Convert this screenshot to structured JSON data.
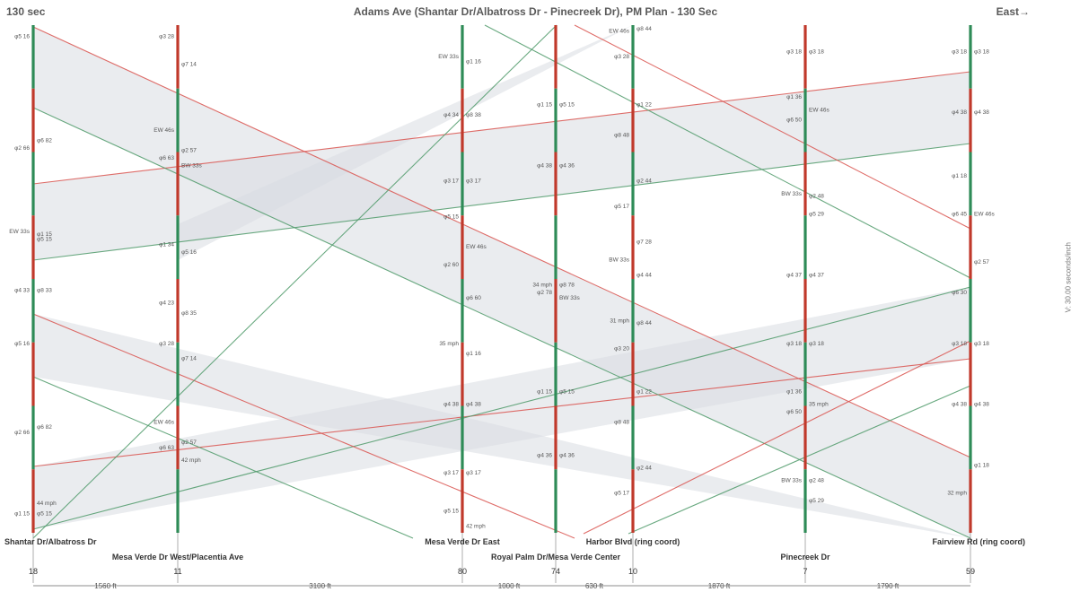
{
  "header": {
    "cycle_label": "130 sec",
    "title": "Adams Ave (Shantar Dr/Albatross Dr - Pinecreek Dr), PM Plan - 130 Sec",
    "direction": "East→"
  },
  "vertical_scale": "V: 30.00 seconds/inch",
  "intersections": [
    {
      "name": "Shantar Dr/Albatross Dr",
      "offset": "18",
      "row": 1,
      "phases": [
        {
          "t": 0.02,
          "text": "φ5 16"
        },
        {
          "t": 0.225,
          "text": "φ6 82"
        },
        {
          "t": 0.24,
          "text": "φ2 66"
        },
        {
          "t": 0.41,
          "text": "φ1 15"
        },
        {
          "t": 0.405,
          "text": "EW 33s"
        },
        {
          "t": 0.42,
          "text": "φ5 15"
        },
        {
          "t": 0.52,
          "text": "φ4 33"
        },
        {
          "t": 0.52,
          "text": "φ8 33"
        },
        {
          "t": 0.625,
          "text": "φ5 16"
        },
        {
          "t": 0.79,
          "text": "φ6 82"
        },
        {
          "t": 0.8,
          "text": "φ2 66"
        },
        {
          "t": 0.94,
          "text": "44 mph"
        },
        {
          "t": 0.96,
          "text": "φ1 15"
        },
        {
          "t": 0.96,
          "text": "φ5 15"
        }
      ]
    },
    {
      "name": "Mesa Verde Dr West/Placentia Ave",
      "offset": "11",
      "row": 2,
      "phases": [
        {
          "t": 0.02,
          "text": "φ3 28"
        },
        {
          "t": 0.075,
          "text": "φ7 14"
        },
        {
          "t": 0.205,
          "text": "EW 46s"
        },
        {
          "t": 0.245,
          "text": "φ2 57"
        },
        {
          "t": 0.26,
          "text": "φ6 63"
        },
        {
          "t": 0.275,
          "text": "BW 33s"
        },
        {
          "t": 0.43,
          "text": "φ1 34"
        },
        {
          "t": 0.445,
          "text": "φ5 16"
        },
        {
          "t": 0.545,
          "text": "φ4 23"
        },
        {
          "t": 0.565,
          "text": "φ8 35"
        },
        {
          "t": 0.625,
          "text": "φ3 28"
        },
        {
          "t": 0.655,
          "text": "φ7 14"
        },
        {
          "t": 0.78,
          "text": "EW 46s"
        },
        {
          "t": 0.82,
          "text": "φ2 57"
        },
        {
          "t": 0.83,
          "text": "φ6 63"
        },
        {
          "t": 0.855,
          "text": "42 mph"
        }
      ]
    },
    {
      "name": "Mesa Verde Dr East",
      "offset": "80",
      "row": 1,
      "phases": [
        {
          "t": 0.06,
          "text": "EW 33s"
        },
        {
          "t": 0.07,
          "text": "φ1 16"
        },
        {
          "t": 0.175,
          "text": "φ4 34"
        },
        {
          "t": 0.175,
          "text": "φ8 38"
        },
        {
          "t": 0.305,
          "text": "φ3 17"
        },
        {
          "t": 0.305,
          "text": "φ3 17"
        },
        {
          "t": 0.375,
          "text": "φ5 15"
        },
        {
          "t": 0.435,
          "text": "EW 46s"
        },
        {
          "t": 0.47,
          "text": "φ2 60"
        },
        {
          "t": 0.535,
          "text": "φ6 60"
        },
        {
          "t": 0.625,
          "text": "35 mph"
        },
        {
          "t": 0.645,
          "text": "φ1 16"
        },
        {
          "t": 0.745,
          "text": "φ4 38"
        },
        {
          "t": 0.745,
          "text": "φ4 38"
        },
        {
          "t": 0.88,
          "text": "φ3 17"
        },
        {
          "t": 0.88,
          "text": "φ3 17"
        },
        {
          "t": 0.955,
          "text": "φ5 15"
        },
        {
          "t": 0.985,
          "text": "42 mph"
        }
      ]
    },
    {
      "name": "Royal Palm Dr/Mesa Verde Center",
      "offset": "74",
      "row": 2,
      "phases": [
        {
          "t": 0.155,
          "text": "φ1 15"
        },
        {
          "t": 0.155,
          "text": "φ5 15"
        },
        {
          "t": 0.275,
          "text": "φ4 38"
        },
        {
          "t": 0.275,
          "text": "φ4 36"
        },
        {
          "t": 0.51,
          "text": "34 mph"
        },
        {
          "t": 0.51,
          "text": "φ8 78"
        },
        {
          "t": 0.525,
          "text": "φ2 78"
        },
        {
          "t": 0.535,
          "text": "BW 33s"
        },
        {
          "t": 0.72,
          "text": "φ1 15"
        },
        {
          "t": 0.72,
          "text": "φ5 15"
        },
        {
          "t": 0.845,
          "text": "φ4 36"
        },
        {
          "t": 0.845,
          "text": "φ4 36"
        }
      ]
    },
    {
      "name": "Harbor Blvd (ring coord)",
      "offset": "10",
      "row": 1,
      "phases": [
        {
          "t": 0.01,
          "text": "EW 46s"
        },
        {
          "t": 0.005,
          "text": "φ8 44"
        },
        {
          "t": 0.06,
          "text": "φ3 28"
        },
        {
          "t": 0.155,
          "text": "φ1 22"
        },
        {
          "t": 0.215,
          "text": "φ8 48"
        },
        {
          "t": 0.305,
          "text": "φ2 44"
        },
        {
          "t": 0.355,
          "text": "φ5 17"
        },
        {
          "t": 0.425,
          "text": "φ7 28"
        },
        {
          "t": 0.46,
          "text": "BW 33s"
        },
        {
          "t": 0.49,
          "text": "φ4 44"
        },
        {
          "t": 0.58,
          "text": "31 mph"
        },
        {
          "t": 0.585,
          "text": "φ8 44"
        },
        {
          "t": 0.635,
          "text": "φ3 20"
        },
        {
          "t": 0.72,
          "text": "φ1 22"
        },
        {
          "t": 0.78,
          "text": "φ8 48"
        },
        {
          "t": 0.87,
          "text": "φ2 44"
        },
        {
          "t": 0.92,
          "text": "φ5 17"
        }
      ]
    },
    {
      "name": "Pinecreek Dr",
      "offset": "7",
      "row": 2,
      "phases": [
        {
          "t": 0.05,
          "text": "φ3 18"
        },
        {
          "t": 0.05,
          "text": "φ3 18"
        },
        {
          "t": 0.14,
          "text": "φ1 36"
        },
        {
          "t": 0.165,
          "text": "EW 46s"
        },
        {
          "t": 0.185,
          "text": "φ6 50"
        },
        {
          "t": 0.335,
          "text": "φ2 48"
        },
        {
          "t": 0.33,
          "text": "BW 33s"
        },
        {
          "t": 0.37,
          "text": "φ5 29"
        },
        {
          "t": 0.49,
          "text": "φ4 37"
        },
        {
          "t": 0.49,
          "text": "φ4 37"
        },
        {
          "t": 0.625,
          "text": "φ3 18"
        },
        {
          "t": 0.625,
          "text": "φ3 18"
        },
        {
          "t": 0.72,
          "text": "φ1 36"
        },
        {
          "t": 0.745,
          "text": "35 mph"
        },
        {
          "t": 0.76,
          "text": "φ6 50"
        },
        {
          "t": 0.895,
          "text": "φ2 48"
        },
        {
          "t": 0.895,
          "text": "BW 33s"
        },
        {
          "t": 0.935,
          "text": "φ5 29"
        }
      ]
    },
    {
      "name": "Fairview Rd (ring coord)",
      "offset": "59",
      "row": 1,
      "phases": [
        {
          "t": 0.05,
          "text": "φ3 18"
        },
        {
          "t": 0.05,
          "text": "φ3 18"
        },
        {
          "t": 0.17,
          "text": "φ4 38"
        },
        {
          "t": 0.17,
          "text": "φ4 38"
        },
        {
          "t": 0.295,
          "text": "φ1 18"
        },
        {
          "t": 0.37,
          "text": "EW 46s"
        },
        {
          "t": 0.37,
          "text": "φ6 45"
        },
        {
          "t": 0.465,
          "text": "φ2 57"
        },
        {
          "t": 0.525,
          "text": "φ6 30"
        },
        {
          "t": 0.625,
          "text": "φ3 18"
        },
        {
          "t": 0.625,
          "text": "φ3 18"
        },
        {
          "t": 0.745,
          "text": "φ4 38"
        },
        {
          "t": 0.745,
          "text": "φ4 38"
        },
        {
          "t": 0.865,
          "text": "φ1 18"
        },
        {
          "t": 0.92,
          "text": "32 mph"
        }
      ]
    }
  ],
  "distances": [
    "1560 ft",
    "3100 ft",
    "1000 ft",
    "630 ft",
    "1870 ft",
    "1790 ft"
  ]
}
